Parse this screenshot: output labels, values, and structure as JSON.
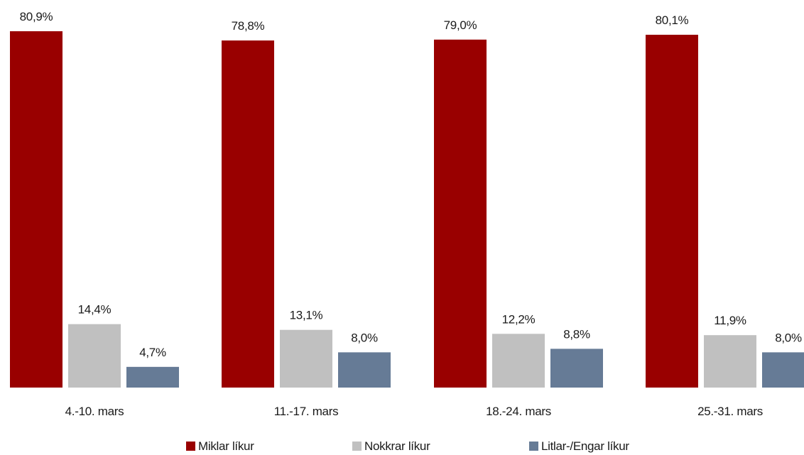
{
  "chart_data": {
    "type": "bar",
    "categories": [
      "4.-10. mars",
      "11.-17. mars",
      "18.-24. mars",
      "25.-31. mars"
    ],
    "series": [
      {
        "name": "Miklar líkur",
        "color": "#990000",
        "values": [
          80.9,
          78.8,
          79.0,
          80.1
        ],
        "labels": [
          "80,9%",
          "78,8%",
          "79,0%",
          "80,1%"
        ]
      },
      {
        "name": "Nokkrar líkur",
        "color": "#c0c0c0",
        "values": [
          14.4,
          13.1,
          12.2,
          11.9
        ],
        "labels": [
          "14,4%",
          "13,1%",
          "12,2%",
          "11,9%"
        ]
      },
      {
        "name": "Litlar-/Engar líkur",
        "color": "#667b96",
        "values": [
          4.7,
          8.0,
          8.8,
          8.0
        ],
        "labels": [
          "4,7%",
          "8,0%",
          "8,8%",
          "8,0%"
        ]
      }
    ],
    "ylim": [
      0,
      80.9
    ],
    "grid": false,
    "legend_position": "bottom"
  }
}
